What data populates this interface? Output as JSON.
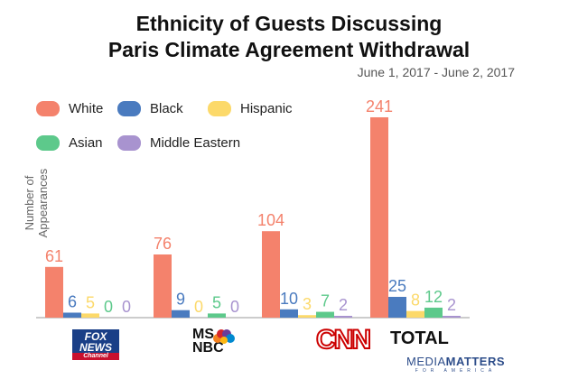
{
  "chart_data": {
    "type": "bar",
    "title": "Ethnicity of Guests Discussing Paris Climate Agreement Withdrawal",
    "subtitle": "June 1, 2017 - June 2, 2017",
    "ylabel": "Number of Appearances",
    "categories": [
      "FOX NEWS Channel",
      "MSNBC",
      "CNN",
      "TOTAL"
    ],
    "series": [
      {
        "name": "White",
        "color": "#f4826c",
        "values": [
          61,
          76,
          104,
          241
        ]
      },
      {
        "name": "Black",
        "color": "#4a7bbf",
        "values": [
          6,
          9,
          10,
          25
        ]
      },
      {
        "name": "Hispanic",
        "color": "#fcd96a",
        "values": [
          5,
          0,
          3,
          8
        ]
      },
      {
        "name": "Asian",
        "color": "#5dc98b",
        "values": [
          0,
          5,
          7,
          12
        ]
      },
      {
        "name": "Middle Eastern",
        "color": "#a893cf",
        "values": [
          0,
          0,
          2,
          2
        ]
      }
    ],
    "ylim": [
      0,
      241
    ],
    "grid": false,
    "legend": "top-left"
  },
  "title_line1": "Ethnicity of Guests Discussing",
  "title_line2": "Paris Climate Agreement Withdrawal",
  "logos": {
    "fox1": "FOX",
    "fox2": "NEWS",
    "fox3": "Channel",
    "msnbc1": "MS",
    "msnbc2": "NBC",
    "cnn": "CNN",
    "total": "TOTAL"
  },
  "brand": {
    "main1": "MEDIA",
    "main2": "MATTERS",
    "sub": "FOR AMERICA"
  }
}
